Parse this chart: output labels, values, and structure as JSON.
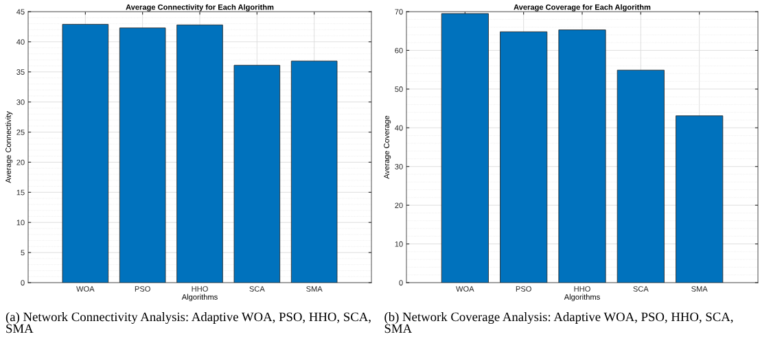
{
  "chart_data": [
    {
      "type": "bar",
      "title": "Average Connectivity for Each Algorithm",
      "xlabel": "Algorithms",
      "ylabel": "Average Connectivity",
      "categories": [
        "WOA",
        "PSO",
        "HHO",
        "SCA",
        "SMA"
      ],
      "values": [
        42.9,
        42.3,
        42.8,
        36.1,
        36.8
      ],
      "color": "#0072bd",
      "ylim": [
        0,
        45
      ],
      "yticks": [
        0,
        5,
        10,
        15,
        20,
        25,
        30,
        35,
        40,
        45
      ],
      "grid": true,
      "annotations": [
        "(a) Network Connectivity Analysis: Adaptive WOA, PSO, HHO, SCA, SMA"
      ]
    },
    {
      "type": "bar",
      "title": "Average Coverage for Each Algorithm",
      "xlabel": "Algorithms",
      "ylabel": "Average Coverage",
      "categories": [
        "WOA",
        "PSO",
        "HHO",
        "SCA",
        "SMA"
      ],
      "values": [
        69.5,
        64.8,
        65.3,
        54.9,
        43.1
      ],
      "color": "#0072bd",
      "ylim": [
        0,
        70
      ],
      "yticks": [
        0,
        10,
        20,
        30,
        40,
        50,
        60,
        70
      ],
      "grid": true,
      "annotations": [
        "(b) Network Coverage Analysis: Adaptive WOA, PSO, HHO, SCA, SMA"
      ]
    }
  ]
}
